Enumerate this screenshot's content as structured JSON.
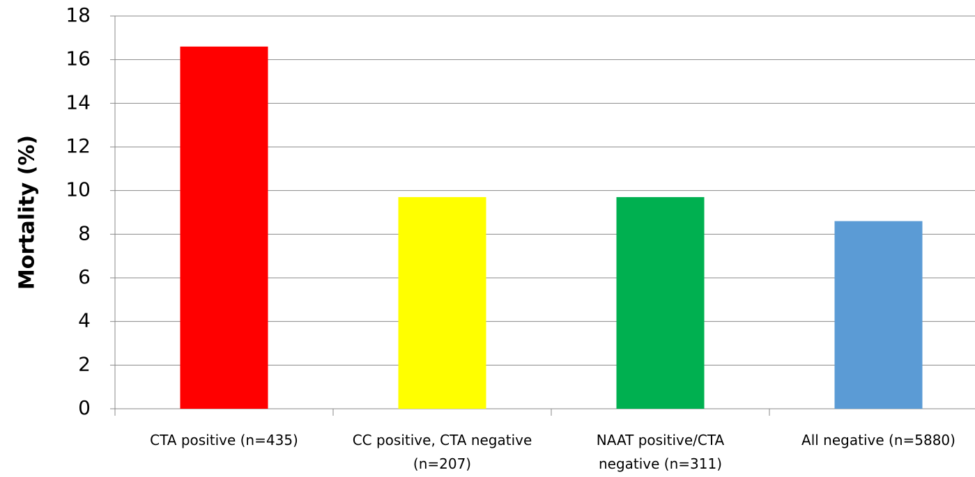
{
  "chart_data": {
    "type": "bar",
    "y_label": "Mortality (%)",
    "categories": [
      "CTA positive (n=435)",
      "CC positive, CTA negative (n=207)",
      "NAAT positive/CTA negative (n=311)",
      "All negative (n=5880)"
    ],
    "values": [
      16.6,
      9.7,
      9.7,
      8.6
    ],
    "colors": [
      "#ff0000",
      "#ffff00",
      "#00b050",
      "#5b9bd5"
    ],
    "ylim": [
      0,
      18
    ],
    "yticks": [
      0,
      2,
      4,
      6,
      8,
      10,
      12,
      14,
      16,
      18
    ],
    "grid": true
  }
}
